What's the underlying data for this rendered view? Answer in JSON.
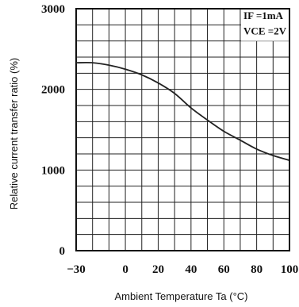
{
  "chart_data": {
    "type": "line",
    "xlabel": "Ambient Temperature Ta (°C)",
    "ylabel": "Relative current transfer ratio (%)",
    "xlim": [
      -30,
      100
    ],
    "ylim": [
      0,
      3000
    ],
    "x_ticks": [
      "−30",
      "0",
      "20",
      "40",
      "60",
      "80",
      "100"
    ],
    "x_tick_values": [
      -30,
      0,
      20,
      40,
      60,
      80,
      100
    ],
    "y_ticks": [
      "0",
      "1000",
      "2000",
      "3000"
    ],
    "y_tick_values": [
      0,
      1000,
      2000,
      3000
    ],
    "grid": true,
    "grid_x_step": 10,
    "grid_y_step": 200,
    "conditions": [
      "IF =1mA",
      "VCE =2V"
    ],
    "series": [
      {
        "x": [
          -30,
          -20,
          -10,
          0,
          10,
          20,
          30,
          40,
          50,
          60,
          70,
          80,
          90,
          100
        ],
        "y": [
          2330,
          2330,
          2300,
          2250,
          2180,
          2080,
          1950,
          1770,
          1620,
          1480,
          1370,
          1260,
          1180,
          1120
        ]
      }
    ]
  }
}
